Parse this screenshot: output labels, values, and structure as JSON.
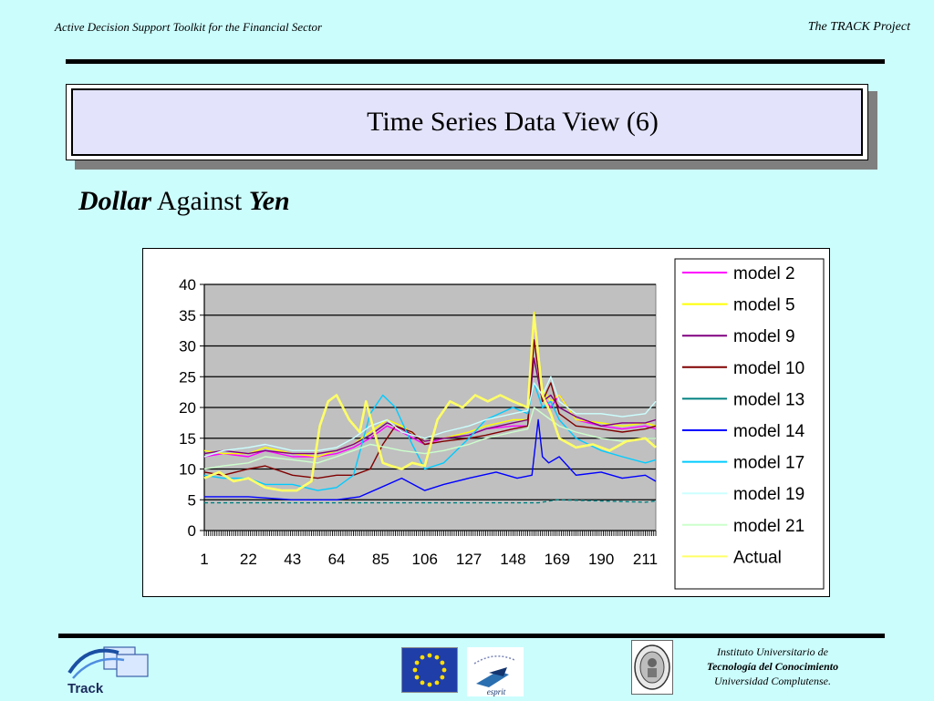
{
  "header": {
    "left_text": "Active Decision Support Toolkit for the Financial Sector",
    "right_text": "The TRACK Project"
  },
  "slide": {
    "title": "Time Series Data View (6)",
    "subtitle_part1": "Dollar",
    "subtitle_part2": "Against",
    "subtitle_part3": "Yen"
  },
  "footer": {
    "track_logo_text": "Track",
    "esprit_text": "esprit",
    "institute_line1": "Instituto  Universitario de",
    "institute_line2": "Tecnología del  Conocimiento",
    "institute_line3": "Universidad Complutense."
  },
  "colors": {
    "background": "#ccfdfd",
    "plot_area": "#c0c0c0",
    "eu_flag": "#1f3ea8",
    "eu_stars": "#ffdd00"
  },
  "chart_data": {
    "type": "line",
    "xlabel": "",
    "ylabel": "",
    "x_tick_labels": [
      "1",
      "22",
      "43",
      "64",
      "85",
      "106",
      "127",
      "148",
      "169",
      "190",
      "211"
    ],
    "x_range": [
      1,
      216
    ],
    "ylim": [
      0,
      40
    ],
    "y_ticks": [
      0,
      5,
      10,
      15,
      20,
      25,
      30,
      35,
      40
    ],
    "grid": "horizontal",
    "legend_position": "right",
    "series": [
      {
        "name": "model 2",
        "color": "#ff00ff",
        "dash": "solid",
        "x": [
          1,
          10,
          22,
          30,
          43,
          55,
          64,
          72,
          80,
          88,
          95,
          106,
          115,
          127,
          135,
          148,
          155,
          158,
          162,
          166,
          170,
          178,
          190,
          200,
          211,
          216
        ],
        "values": [
          12,
          12.5,
          12,
          13,
          12,
          12,
          12.5,
          13.5,
          15,
          17,
          16,
          14,
          15,
          15.5,
          16.5,
          17,
          17,
          34,
          22,
          20,
          22,
          18,
          17,
          16.5,
          17,
          16.5
        ]
      },
      {
        "name": "model 5",
        "color": "#ffff00",
        "dash": "solid",
        "x": [
          1,
          10,
          22,
          30,
          43,
          55,
          64,
          72,
          80,
          88,
          95,
          106,
          115,
          127,
          135,
          148,
          155,
          158,
          162,
          166,
          170,
          178,
          190,
          200,
          211,
          216
        ],
        "values": [
          13,
          12.5,
          12.5,
          13.5,
          12.5,
          12,
          13,
          14,
          16,
          18,
          17,
          14.5,
          15,
          16,
          17,
          18,
          18,
          35.5,
          23,
          21,
          22,
          18,
          17.5,
          17,
          17.5,
          17
        ]
      },
      {
        "name": "model 9",
        "color": "#800080",
        "dash": "solid",
        "x": [
          1,
          10,
          22,
          30,
          43,
          55,
          64,
          72,
          80,
          88,
          95,
          106,
          115,
          127,
          135,
          148,
          155,
          158,
          162,
          166,
          170,
          178,
          190,
          200,
          211,
          216
        ],
        "values": [
          12.5,
          13,
          12.5,
          13,
          12.5,
          12.5,
          13,
          14,
          15.5,
          17.5,
          16.5,
          14.5,
          15,
          15.5,
          16.5,
          17.5,
          18,
          28,
          21,
          22,
          20,
          18.5,
          17,
          17.5,
          17.5,
          18
        ]
      },
      {
        "name": "model 10",
        "color": "#800000",
        "dash": "solid",
        "x": [
          1,
          10,
          22,
          30,
          43,
          55,
          64,
          72,
          80,
          86,
          92,
          100,
          106,
          115,
          127,
          135,
          148,
          155,
          158,
          162,
          166,
          170,
          178,
          190,
          200,
          211,
          216
        ],
        "values": [
          9.5,
          9,
          10,
          10.5,
          9,
          8.5,
          9,
          9,
          10,
          14,
          17,
          16,
          14,
          14.5,
          15,
          15.5,
          16.5,
          17,
          31,
          21,
          24,
          19,
          17,
          16.5,
          16,
          16.5,
          17
        ]
      },
      {
        "name": "model 13",
        "color": "#008080",
        "dash": "dashed",
        "x": [
          1,
          22,
          43,
          64,
          85,
          106,
          127,
          148,
          160,
          169,
          190,
          211,
          216
        ],
        "values": [
          4.5,
          4.5,
          4.5,
          4.5,
          4.5,
          4.5,
          4.5,
          4.5,
          4.5,
          5,
          4.8,
          4.6,
          4.8
        ]
      },
      {
        "name": "model 14",
        "color": "#0000ff",
        "dash": "solid",
        "x": [
          1,
          22,
          43,
          64,
          75,
          85,
          95,
          106,
          115,
          127,
          140,
          150,
          157,
          160,
          162,
          165,
          170,
          178,
          190,
          200,
          211,
          216
        ],
        "values": [
          5.5,
          5.5,
          5,
          5,
          5.5,
          7,
          8.5,
          6.5,
          7.5,
          8.5,
          9.5,
          8.5,
          9,
          18,
          12,
          11,
          12,
          9,
          9.5,
          8.5,
          9,
          8
        ]
      },
      {
        "name": "model 17",
        "color": "#00ccff",
        "dash": "solid",
        "x": [
          1,
          10,
          22,
          30,
          43,
          55,
          64,
          72,
          76,
          80,
          86,
          92,
          100,
          106,
          115,
          127,
          135,
          148,
          155,
          158,
          162,
          166,
          170,
          178,
          190,
          200,
          211,
          216
        ],
        "values": [
          9,
          8.5,
          8.5,
          7.5,
          7.5,
          6.5,
          7,
          9,
          14,
          19,
          22,
          20,
          14,
          10,
          11,
          15,
          18,
          20,
          19,
          24,
          20,
          21,
          18,
          15,
          13,
          12,
          11,
          11.5
        ]
      },
      {
        "name": "model 19",
        "color": "#ccffff",
        "dash": "solid",
        "x": [
          1,
          10,
          22,
          30,
          43,
          55,
          64,
          72,
          80,
          88,
          95,
          106,
          115,
          127,
          135,
          148,
          155,
          158,
          162,
          166,
          170,
          178,
          190,
          200,
          211,
          216
        ],
        "values": [
          12,
          13,
          13.5,
          14,
          13,
          13,
          13.5,
          15,
          17,
          18,
          16,
          15,
          16,
          17,
          18,
          19,
          19.5,
          24,
          22,
          25,
          21,
          19,
          19,
          18.5,
          19,
          21
        ]
      },
      {
        "name": "model 21",
        "color": "#ccffcc",
        "dash": "solid",
        "x": [
          1,
          10,
          22,
          30,
          43,
          55,
          64,
          72,
          80,
          88,
          95,
          106,
          115,
          127,
          135,
          148,
          155,
          158,
          162,
          166,
          170,
          178,
          190,
          200,
          211,
          216
        ],
        "values": [
          10,
          10.5,
          11,
          12,
          11.5,
          11,
          12,
          13,
          14,
          13.5,
          13,
          12.5,
          13,
          14,
          15,
          16,
          16.5,
          20,
          19,
          18,
          17,
          16,
          15,
          14.5,
          15,
          15
        ]
      },
      {
        "name": "Actual",
        "color": "#ffff66",
        "dash": "solid",
        "x": [
          1,
          8,
          15,
          22,
          30,
          38,
          45,
          52,
          56,
          60,
          64,
          70,
          75,
          78,
          82,
          86,
          90,
          95,
          100,
          106,
          112,
          118,
          124,
          130,
          136,
          142,
          148,
          155,
          158,
          162,
          166,
          170,
          178,
          186,
          194,
          202,
          211,
          216
        ],
        "values": [
          8.5,
          9.5,
          8,
          8.5,
          7,
          6.5,
          6.5,
          8,
          17,
          21,
          22,
          18,
          16,
          21,
          16,
          11,
          10.5,
          10,
          11,
          10.5,
          18,
          21,
          20,
          22,
          21,
          22,
          21,
          20,
          35,
          22,
          19,
          15,
          13.5,
          14,
          13,
          14.5,
          15,
          13.5
        ]
      }
    ]
  }
}
